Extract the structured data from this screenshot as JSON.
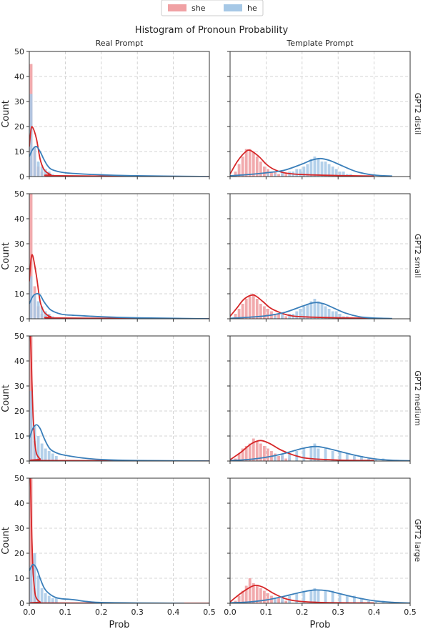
{
  "title": "Histogram of Pronoun Probability",
  "legend": {
    "placement": "top-center",
    "items": [
      {
        "label": "she",
        "color": "#f0a1a4"
      },
      {
        "label": "he",
        "color": "#a6c8e6"
      }
    ]
  },
  "colors": {
    "she_bar": "#f0a1a4",
    "he_bar": "#a6c8e6",
    "she_line": "#d62728",
    "he_line": "#3a7fba",
    "grid": "#c8c8c8"
  },
  "column_titles": [
    "Real Prompt",
    "Template Prompt"
  ],
  "row_titles": [
    "GPT2 distil",
    "GPT2 small",
    "GPT2 medium",
    "GPT2 large"
  ],
  "xlabel": "Prob",
  "ylabel": "Count",
  "xlim": [
    0,
    0.5
  ],
  "ylim": [
    0,
    50
  ],
  "xticks": [
    "0.0",
    "0.1",
    "0.2",
    "0.3",
    "0.4",
    "0.5"
  ],
  "yticks": [
    "0",
    "10",
    "20",
    "30",
    "40",
    "50"
  ],
  "chart_data": [
    {
      "type": "bar",
      "row": "GPT2 distil",
      "column": "Real Prompt",
      "bin_width": 0.01,
      "grid": true,
      "series": [
        {
          "name": "she",
          "x": [
            0.005,
            0.015,
            0.025,
            0.035,
            0.045
          ],
          "values": [
            45,
            12,
            4,
            2,
            1
          ],
          "kde": {
            "x": [
              0,
              0.005,
              0.01,
              0.02,
              0.03,
              0.04,
              0.05,
              0.06,
              0.08,
              0.5
            ],
            "y": [
              12,
              19,
              19.5,
              15,
              7,
              3,
              1.5,
              0.8,
              0.3,
              0
            ]
          }
        },
        {
          "name": "he",
          "x": [
            0.005,
            0.015,
            0.025,
            0.035,
            0.045,
            0.055,
            0.065
          ],
          "values": [
            33,
            12,
            6,
            4,
            3,
            2,
            1
          ],
          "kde": {
            "x": [
              0,
              0.01,
              0.02,
              0.03,
              0.04,
              0.05,
              0.06,
              0.08,
              0.1,
              0.15,
              0.2,
              0.3,
              0.5
            ],
            "y": [
              8,
              11,
              12,
              10,
              7,
              4.5,
              3,
              2,
              1.5,
              1,
              0.7,
              0.3,
              0
            ]
          }
        }
      ]
    },
    {
      "type": "bar",
      "row": "GPT2 distil",
      "column": "Template Prompt",
      "bin_width": 0.01,
      "grid": true,
      "series": [
        {
          "name": "she",
          "x": [
            0.015,
            0.025,
            0.035,
            0.045,
            0.055,
            0.065,
            0.075,
            0.085,
            0.095,
            0.105,
            0.115,
            0.125,
            0.135,
            0.145,
            0.155
          ],
          "values": [
            2,
            5,
            8,
            11,
            11,
            10,
            8,
            6,
            4,
            3,
            2,
            2,
            1,
            1,
            1
          ],
          "kde": {
            "x": [
              0,
              0.02,
              0.04,
              0.055,
              0.08,
              0.1,
              0.12,
              0.15,
              0.2,
              0.3,
              0.4
            ],
            "y": [
              1,
              6,
              9.5,
              10.5,
              8,
              5,
              3,
              1.5,
              0.8,
              0.4,
              0.2
            ]
          }
        },
        {
          "name": "he",
          "x": [
            0.105,
            0.125,
            0.145,
            0.165,
            0.175,
            0.185,
            0.195,
            0.205,
            0.215,
            0.225,
            0.235,
            0.245,
            0.255,
            0.265,
            0.275,
            0.285,
            0.295,
            0.305,
            0.315,
            0.325,
            0.335
          ],
          "values": [
            1,
            1,
            2,
            2,
            2,
            3,
            3,
            4,
            5,
            7,
            8,
            7,
            6,
            6,
            5,
            4,
            3,
            2,
            2,
            1,
            1
          ],
          "kde": {
            "x": [
              0,
              0.05,
              0.1,
              0.15,
              0.2,
              0.225,
              0.25,
              0.275,
              0.3,
              0.35,
              0.4,
              0.45
            ],
            "y": [
              0.3,
              0.8,
              1.5,
              2.5,
              5,
              6.5,
              7.2,
              6.5,
              5,
              2,
              0.6,
              0.2
            ]
          }
        }
      ]
    },
    {
      "type": "bar",
      "row": "GPT2 small",
      "column": "Real Prompt",
      "bin_width": 0.01,
      "grid": true,
      "series": [
        {
          "name": "she",
          "x": [
            0.005,
            0.015,
            0.025,
            0.035,
            0.045
          ],
          "values": [
            50,
            13,
            5,
            2,
            1
          ],
          "kde": {
            "x": [
              0,
              0.005,
              0.01,
              0.02,
              0.03,
              0.04,
              0.05,
              0.06,
              0.08,
              0.5
            ],
            "y": [
              15,
              24,
              25,
              17,
              7,
              3,
              1.5,
              0.8,
              0.3,
              0
            ]
          }
        },
        {
          "name": "he",
          "x": [
            0.005,
            0.015,
            0.025,
            0.035,
            0.045,
            0.055,
            0.065
          ],
          "values": [
            17,
            10,
            7,
            5,
            3,
            2,
            1
          ],
          "kde": {
            "x": [
              0,
              0.01,
              0.02,
              0.03,
              0.04,
              0.05,
              0.06,
              0.08,
              0.1,
              0.15,
              0.2,
              0.3,
              0.5
            ],
            "y": [
              6,
              9,
              10,
              9.5,
              7,
              5,
              3.5,
              2.2,
              1.6,
              1.2,
              0.8,
              0.4,
              0
            ]
          }
        }
      ]
    },
    {
      "type": "bar",
      "row": "GPT2 small",
      "column": "Template Prompt",
      "bin_width": 0.01,
      "grid": true,
      "series": [
        {
          "name": "she",
          "x": [
            0.015,
            0.025,
            0.035,
            0.045,
            0.055,
            0.065,
            0.075,
            0.085,
            0.095,
            0.105,
            0.115,
            0.125,
            0.135,
            0.145,
            0.155
          ],
          "values": [
            2,
            4,
            6,
            8,
            9,
            10,
            8,
            6,
            5,
            4,
            3,
            2,
            2,
            1,
            1
          ],
          "kde": {
            "x": [
              0,
              0.02,
              0.04,
              0.065,
              0.09,
              0.11,
              0.13,
              0.16,
              0.2,
              0.3,
              0.4
            ],
            "y": [
              1,
              4.5,
              8,
              9.5,
              7,
              4.5,
              3,
              1.5,
              0.8,
              0.4,
              0.2
            ]
          }
        },
        {
          "name": "he",
          "x": [
            0.125,
            0.145,
            0.165,
            0.175,
            0.185,
            0.195,
            0.205,
            0.215,
            0.225,
            0.235,
            0.245,
            0.255,
            0.265,
            0.275,
            0.285,
            0.295,
            0.305,
            0.315,
            0.325
          ],
          "values": [
            1,
            2,
            2,
            2,
            3,
            4,
            5,
            6,
            7,
            8,
            7,
            6,
            5,
            4,
            3,
            3,
            2,
            1,
            1
          ],
          "kde": {
            "x": [
              0,
              0.05,
              0.1,
              0.15,
              0.2,
              0.225,
              0.24,
              0.26,
              0.28,
              0.32,
              0.36,
              0.4,
              0.45
            ],
            "y": [
              0.2,
              0.6,
              1.2,
              2.5,
              5,
              6.2,
              6.5,
              6,
              4.8,
              2.3,
              0.8,
              0.3,
              0.1
            ]
          }
        }
      ]
    },
    {
      "type": "bar",
      "row": "GPT2 medium",
      "column": "Real Prompt",
      "bin_width": 0.01,
      "grid": true,
      "series": [
        {
          "name": "she",
          "x": [
            0.005,
            0.015,
            0.025
          ],
          "values": [
            50,
            8,
            2
          ],
          "kde": {
            "x": [
              0,
              0.003,
              0.006,
              0.01,
              0.015,
              0.02,
              0.03,
              0.04,
              0.5
            ],
            "y": [
              50,
              50,
              38,
              20,
              8,
              3,
              0.8,
              0.2,
              0
            ]
          }
        },
        {
          "name": "he",
          "x": [
            0.005,
            0.015,
            0.025,
            0.035,
            0.045,
            0.055,
            0.065,
            0.075
          ],
          "values": [
            28,
            14,
            10,
            7,
            5,
            4,
            3,
            2
          ],
          "kde": {
            "x": [
              0,
              0.01,
              0.02,
              0.03,
              0.04,
              0.05,
              0.06,
              0.08,
              0.1,
              0.15,
              0.2,
              0.3,
              0.5
            ],
            "y": [
              9,
              13,
              14.5,
              13,
              9.5,
              6.5,
              4.5,
              3,
              2.3,
              1.2,
              0.6,
              0.2,
              0
            ]
          }
        }
      ]
    },
    {
      "type": "bar",
      "row": "GPT2 medium",
      "column": "Template Prompt",
      "bin_width": 0.01,
      "grid": true,
      "series": [
        {
          "name": "she",
          "x": [
            0.015,
            0.025,
            0.035,
            0.045,
            0.055,
            0.065,
            0.075,
            0.085,
            0.095,
            0.105,
            0.115,
            0.125,
            0.135,
            0.145,
            0.155,
            0.165
          ],
          "values": [
            1,
            3,
            5,
            6,
            7,
            9,
            8,
            7,
            6,
            5,
            4,
            3,
            2,
            2,
            1,
            1
          ],
          "kde": {
            "x": [
              0,
              0.03,
              0.06,
              0.085,
              0.11,
              0.14,
              0.18,
              0.22,
              0.3,
              0.4
            ],
            "y": [
              0.5,
              3.5,
              7,
              8.2,
              7,
              4.5,
              2.2,
              1,
              0.4,
              0.2
            ]
          }
        },
        {
          "name": "he",
          "x": [
            0.125,
            0.145,
            0.165,
            0.185,
            0.205,
            0.225,
            0.235,
            0.245,
            0.265,
            0.285,
            0.305,
            0.325,
            0.345,
            0.365,
            0.385,
            0.405,
            0.425,
            0.445,
            0.465
          ],
          "values": [
            2,
            3,
            3,
            4,
            5,
            6,
            7,
            5,
            5,
            4,
            4,
            3,
            2,
            2,
            1,
            1,
            1,
            0.5,
            0.5
          ],
          "kde": {
            "x": [
              0,
              0.05,
              0.1,
              0.15,
              0.2,
              0.235,
              0.26,
              0.3,
              0.35,
              0.4,
              0.45,
              0.5
            ],
            "y": [
              0.2,
              0.6,
              1.5,
              3,
              5,
              5.8,
              5.4,
              4,
              2.2,
              0.9,
              0.3,
              0.1
            ]
          }
        }
      ]
    },
    {
      "type": "bar",
      "row": "GPT2 large",
      "column": "Real Prompt",
      "bin_width": 0.01,
      "grid": true,
      "series": [
        {
          "name": "she",
          "x": [
            0.005,
            0.015,
            0.025
          ],
          "values": [
            50,
            6,
            1
          ],
          "kde": {
            "x": [
              0,
              0.003,
              0.006,
              0.01,
              0.015,
              0.02,
              0.03,
              0.04,
              0.5
            ],
            "y": [
              50,
              50,
              32,
              14,
              5,
              2,
              0.5,
              0.1,
              0
            ]
          }
        },
        {
          "name": "he",
          "x": [
            0.005,
            0.015,
            0.025,
            0.035,
            0.045,
            0.055,
            0.065,
            0.075
          ],
          "values": [
            15,
            20,
            11,
            6,
            4,
            3,
            2,
            2
          ],
          "kde": {
            "x": [
              0,
              0.01,
              0.02,
              0.03,
              0.04,
              0.05,
              0.07,
              0.09,
              0.11,
              0.13,
              0.16,
              0.2,
              0.3,
              0.43
            ],
            "y": [
              13,
              15.5,
              14,
              10,
              6.5,
              4.5,
              2.5,
              1.8,
              1.6,
              1.3,
              0.7,
              0.3,
              0.1,
              0
            ]
          }
        }
      ]
    },
    {
      "type": "bar",
      "row": "GPT2 large",
      "column": "Template Prompt",
      "bin_width": 0.01,
      "grid": true,
      "series": [
        {
          "name": "she",
          "x": [
            0.015,
            0.025,
            0.035,
            0.045,
            0.055,
            0.065,
            0.075,
            0.085,
            0.095,
            0.105,
            0.115,
            0.125,
            0.135,
            0.145,
            0.155
          ],
          "values": [
            1,
            3,
            5,
            7,
            10,
            8,
            7,
            6,
            5,
            4,
            3,
            2,
            2,
            1,
            1
          ],
          "kde": {
            "x": [
              0,
              0.03,
              0.065,
              0.09,
              0.12,
              0.15,
              0.18,
              0.22,
              0.3,
              0.4
            ],
            "y": [
              0.5,
              4,
              7,
              6.5,
              4,
              2,
              1,
              0.5,
              0.2,
              0.1
            ]
          }
        },
        {
          "name": "he",
          "x": [
            0.125,
            0.145,
            0.165,
            0.185,
            0.205,
            0.225,
            0.235,
            0.245,
            0.265,
            0.285,
            0.305,
            0.325,
            0.345,
            0.365,
            0.385,
            0.405,
            0.425,
            0.445
          ],
          "values": [
            2,
            2,
            3,
            4,
            5,
            5,
            6,
            5,
            5,
            5,
            4,
            3,
            3,
            2,
            1,
            1,
            1,
            0.5
          ],
          "kde": {
            "x": [
              0,
              0.05,
              0.1,
              0.15,
              0.2,
              0.235,
              0.27,
              0.3,
              0.35,
              0.4,
              0.45,
              0.5
            ],
            "y": [
              0.2,
              0.5,
              1.3,
              2.8,
              4.5,
              5.3,
              5,
              4,
              2.3,
              1,
              0.4,
              0.1
            ]
          }
        }
      ]
    }
  ]
}
